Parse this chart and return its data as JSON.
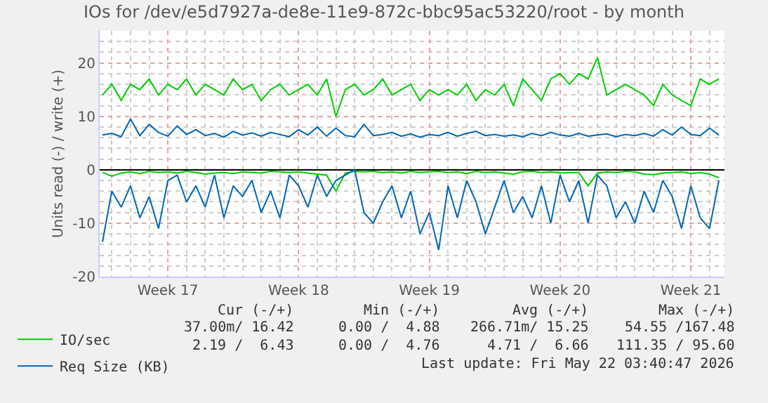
{
  "chart_data": {
    "type": "line",
    "title": "IOs for /dev/e5d7927a-de8e-11e9-872c-bbc95ac53220/root - by month",
    "ylabel": "Units read (-) / write (+)",
    "categories": [
      null,
      null,
      null,
      null,
      null,
      null,
      null,
      "Week 17",
      null,
      null,
      null,
      null,
      null,
      null,
      null,
      null,
      null,
      null,
      null,
      null,
      null,
      "Week 18",
      null,
      null,
      null,
      null,
      null,
      null,
      null,
      null,
      null,
      null,
      null,
      null,
      null,
      "Week 19",
      null,
      null,
      null,
      null,
      null,
      null,
      null,
      null,
      null,
      null,
      null,
      null,
      null,
      "Week 20",
      null,
      null,
      null,
      null,
      null,
      null,
      null,
      null,
      null,
      null,
      null,
      null,
      null,
      "Week 21",
      null,
      null,
      null
    ],
    "ylim": [
      -20,
      26
    ],
    "yticks": [
      -20,
      -10,
      0,
      10,
      20
    ],
    "grid": true,
    "legend": "bottom left",
    "series": [
      {
        "name": "IO/sec",
        "color": "#00cc00",
        "values": [
          14,
          16,
          13,
          16,
          15,
          17,
          14,
          16,
          15,
          17,
          14,
          16,
          15,
          14,
          17,
          15,
          16,
          13,
          15,
          16,
          14,
          15,
          16,
          14,
          17,
          10,
          15,
          16,
          14,
          15,
          17,
          14,
          15,
          16,
          13,
          15,
          14,
          15,
          14,
          16,
          13,
          15,
          14,
          16,
          12,
          17,
          15,
          13,
          17,
          18,
          16,
          18,
          17,
          21,
          14,
          15,
          16,
          15,
          14,
          12,
          16,
          14,
          13,
          12,
          17,
          16,
          17
        ]
      },
      {
        "name": "Req Size (KB)",
        "color": "#0066b3",
        "values": [
          6.5,
          6.8,
          6.2,
          9.5,
          6.4,
          8.5,
          7.0,
          6.3,
          8.2,
          6.6,
          7.5,
          6.4,
          6.8,
          6.1,
          7.2,
          6.5,
          6.9,
          6.3,
          7.0,
          6.6,
          6.2,
          7.5,
          6.5,
          8.0,
          6.3,
          7.8,
          6.4,
          6.2,
          8.5,
          6.4,
          6.6,
          7.0,
          6.3,
          6.7,
          6.1,
          6.6,
          6.4,
          7.0,
          6.3,
          6.8,
          7.2,
          6.4,
          6.6,
          6.3,
          6.5,
          6.2,
          6.8,
          6.4,
          7.0,
          6.5,
          6.3,
          6.8,
          6.3,
          6.5,
          6.7,
          6.2,
          6.6,
          6.4,
          6.8,
          6.3,
          7.5,
          6.5,
          8.0,
          6.6,
          6.4,
          7.8,
          6.5
        ]
      },
      {
        "color": "#00cc00",
        "values": [
          -0.5,
          -1.2,
          -0.6,
          -0.4,
          -0.7,
          -0.3,
          -0.5,
          -0.4,
          -0.6,
          -0.3,
          -0.5,
          -0.8,
          -0.6,
          -0.5,
          -0.7,
          -0.4,
          -0.5,
          -0.6,
          -0.3,
          -0.4,
          -0.5,
          -0.4,
          -0.6,
          -0.8,
          -1.0,
          -4.0,
          -0.6,
          -0.3,
          -0.4,
          -0.3,
          -0.5,
          -0.4,
          -0.6,
          -0.3,
          -0.5,
          -0.4,
          -0.3,
          -0.5,
          -0.4,
          -0.7,
          -0.3,
          -0.5,
          -0.4,
          -0.6,
          -0.8,
          -0.4,
          -0.3,
          -0.5,
          -0.4,
          -0.6,
          -0.5,
          -0.5,
          -3.0,
          -0.6,
          -0.4,
          -0.5,
          -0.3,
          -0.4,
          -0.8,
          -0.9,
          -0.6,
          -0.5,
          -0.4,
          -0.7,
          -0.5,
          -0.8,
          -1.5
        ]
      },
      {
        "color": "#0066b3",
        "values": [
          -13.5,
          -4,
          -7,
          -3,
          -9,
          -5,
          -11,
          -2,
          -1,
          -6,
          -3,
          -7,
          -1,
          -9,
          -3,
          -5,
          -2,
          -8,
          -4,
          -9,
          -1,
          -3,
          -7,
          -1,
          -5,
          -2,
          -1,
          0,
          -8,
          -10,
          -6,
          -3,
          -9,
          -4,
          -12,
          -8,
          -15,
          -3,
          -9,
          -2,
          -6,
          -12,
          -7,
          -2,
          -8,
          -5,
          -9,
          -3,
          -10,
          -1,
          -6,
          -2,
          -10,
          -1,
          -3,
          -9,
          -6,
          -10,
          -4,
          -8,
          -2,
          -5,
          -11,
          -3,
          -9,
          -11,
          -2
        ]
      }
    ],
    "annotations": [
      "Cur (-/+)",
      "Min (-/+)",
      "Avg (-/+)",
      "Max (-/+)",
      "37.00m/ 16.42",
      "0.00 /  4.88",
      "266.71m/ 15.25",
      "54.55 /167.48",
      "2.19 /  6.43",
      "0.00 /  4.76",
      "4.71 /  6.66",
      "111.35 / 95.60",
      "Last update: Fri May 22 03:40:47 2026"
    ]
  }
}
